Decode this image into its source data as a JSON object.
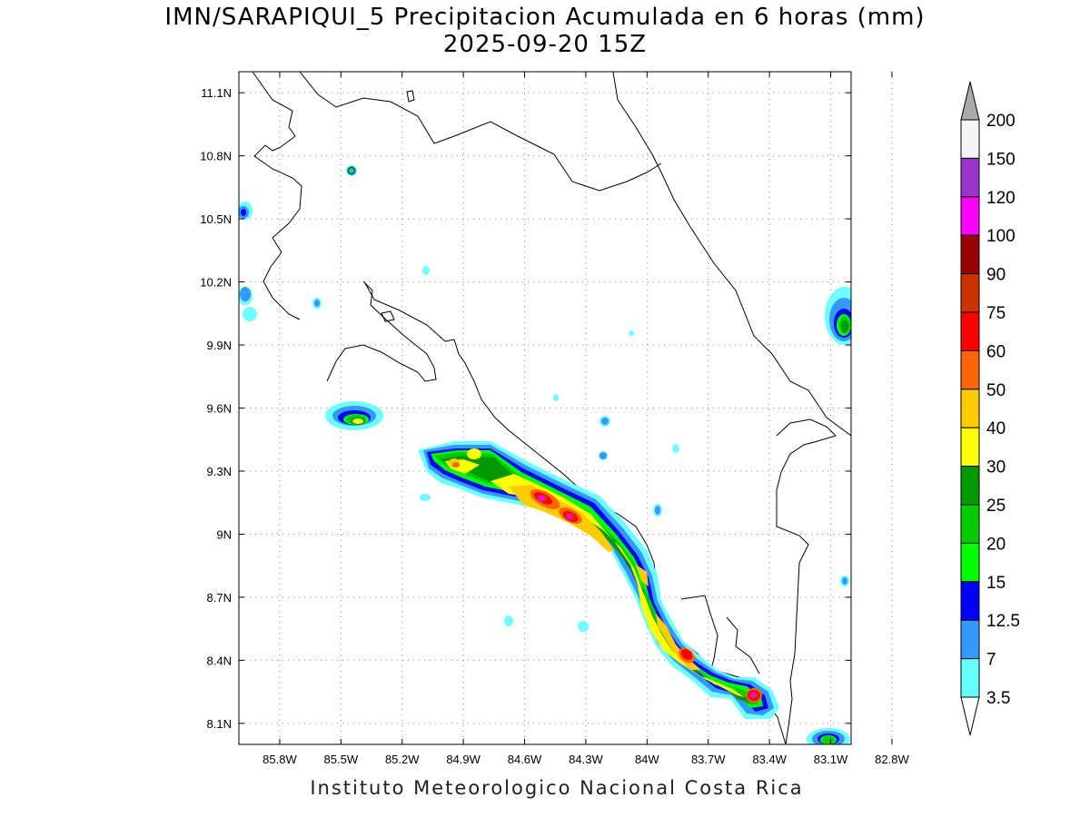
{
  "header": {
    "title_line1": "IMN/SARAPIQUI_5 Precipitacion Acumulada en 6 horas (mm)",
    "title_line2": "2025-09-20 15Z"
  },
  "footer": {
    "credit": "Instituto Meteorologico Nacional Costa Rica"
  },
  "map": {
    "lon_ticks": [
      "85.8W",
      "85.5W",
      "85.2W",
      "84.9W",
      "84.6W",
      "84.3W",
      "84W",
      "83.7W",
      "83.4W",
      "83.1W",
      "82.8W"
    ],
    "lat_ticks": [
      "11.1N",
      "10.8N",
      "10.5N",
      "10.2N",
      "9.9N",
      "9.6N",
      "9.3N",
      "9N",
      "8.7N",
      "8.4N",
      "8.1N"
    ],
    "lon_range": [
      -86.0,
      -83.0
    ],
    "lat_range": [
      8.0,
      11.2
    ],
    "grid": "dotted"
  },
  "colorbar": {
    "labels": [
      "200",
      "150",
      "120",
      "100",
      "90",
      "75",
      "60",
      "50",
      "40",
      "30",
      "25",
      "20",
      "15",
      "12.5",
      "7",
      "3.5"
    ],
    "colors": [
      "#f5f5f5",
      "#9933cc",
      "#ff00ff",
      "#990000",
      "#cc3300",
      "#ff0000",
      "#ff6600",
      "#ffcc00",
      "#ffff00",
      "#009900",
      "#00cc00",
      "#00ff00",
      "#0000ff",
      "#3399ff",
      "#66ffff"
    ],
    "over_color": "#aaaaaa",
    "under_color": "#ffffff"
  }
}
